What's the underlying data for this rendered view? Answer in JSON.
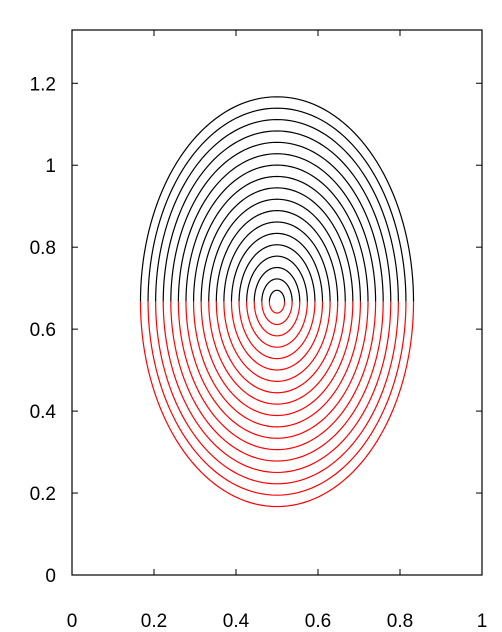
{
  "chart_data": {
    "type": "line",
    "title": "",
    "xlabel": "",
    "ylabel": "",
    "xlim": [
      0,
      1
    ],
    "ylim": [
      0,
      1.33
    ],
    "xticks": [
      {
        "value": 0,
        "label": "0"
      },
      {
        "value": 0.2,
        "label": "0.2"
      },
      {
        "value": 0.4,
        "label": "0.4"
      },
      {
        "value": 0.6,
        "label": "0.6"
      },
      {
        "value": 0.8,
        "label": "0.8"
      },
      {
        "value": 1,
        "label": "1"
      }
    ],
    "yticks": [
      {
        "value": 0,
        "label": "0"
      },
      {
        "value": 0.2,
        "label": "0.2"
      },
      {
        "value": 0.4,
        "label": "0.4"
      },
      {
        "value": 0.6,
        "label": "0.6"
      },
      {
        "value": 0.8,
        "label": "0.8"
      },
      {
        "value": 1,
        "label": "1"
      },
      {
        "value": 1.2,
        "label": "1.2"
      }
    ],
    "grid": false,
    "center": {
      "x": 0.5,
      "y": 0.667
    },
    "split_y": 0.667,
    "contour_count": 18,
    "outer_semi_axis_x": 0.333,
    "outer_semi_axis_y_upper": 0.5,
    "outer_semi_axis_y_lower": 0.5,
    "upper_color": "#000000",
    "lower_color": "#ff0000",
    "frame_color": "#000000"
  }
}
